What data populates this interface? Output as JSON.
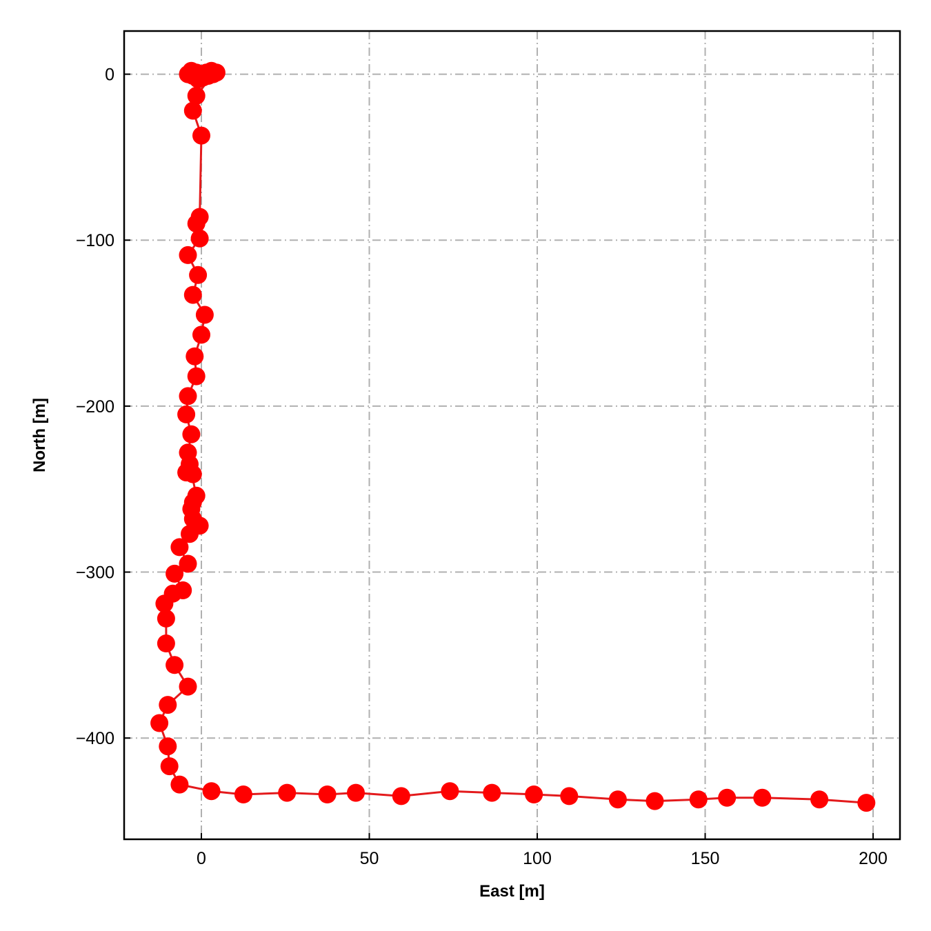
{
  "chart_data": {
    "type": "line",
    "title": "",
    "xlabel": "East [m]",
    "ylabel": "North [m]",
    "xlim": [
      -23,
      208
    ],
    "ylim": [
      -461,
      26
    ],
    "grid": true,
    "xticks": [
      0,
      50,
      100,
      150,
      200
    ],
    "yticks": [
      0,
      -100,
      -200,
      -300,
      -400
    ],
    "xtick_labels": [
      "0",
      "50",
      "100",
      "150",
      "200"
    ],
    "ytick_labels": [
      "0",
      "−100",
      "−200",
      "−300",
      "−400"
    ],
    "series": [
      {
        "marker": "circle",
        "x": [
          4.5,
          3.0,
          1.5,
          0.5,
          -1.5,
          -3.0,
          -4.0,
          -2.5,
          -1.0,
          0.5,
          2.0,
          3.5,
          -1.5,
          -2.5,
          0,
          -0.5,
          -1.5,
          -0.5,
          -4.0,
          -1.0,
          -2.5,
          1.0,
          0,
          -2.0,
          -1.5,
          -4.0,
          -4.5,
          -3.0,
          -4.0,
          -2.5,
          -4.5,
          -3.5,
          -1.5,
          -2.5,
          -3.0,
          -2.5,
          -0.5,
          -3.5,
          -6.5,
          -4.0,
          -8.0,
          -5.5,
          -8.5,
          -11.0,
          -10.5,
          -10.5,
          -8.0,
          -4.0,
          -10.0,
          -12.5,
          -10.0,
          -9.5,
          -6.5,
          3.0,
          12.5,
          25.5,
          37.5,
          46.0,
          59.5,
          74.0,
          86.5,
          99.0,
          109.5,
          124.0,
          135.0,
          148.0,
          156.5,
          167.0,
          184.0,
          198.0
        ],
        "y": [
          1,
          2,
          1,
          0,
          1,
          2,
          0,
          -1,
          -3,
          -2,
          -1,
          0,
          -13,
          -22,
          -37,
          -86,
          -90,
          -99,
          -109,
          -121,
          -133,
          -145,
          -157,
          -170,
          -182,
          -194,
          -205,
          -217,
          -228,
          -241,
          -240,
          -235,
          -254,
          -258,
          -262,
          -268,
          -272,
          -277,
          -285,
          -295,
          -301,
          -311,
          -313,
          -319,
          -328,
          -343,
          -356,
          -369,
          -380,
          -391,
          -405,
          -417,
          -428,
          -432,
          -434,
          -433,
          -434,
          -433,
          -435,
          -432,
          -433,
          -434,
          -435,
          -437,
          -438,
          -437,
          -436,
          -436,
          -437,
          -439
        ]
      }
    ],
    "colors": {
      "line": "#e31a1c",
      "marker": "#ff0000",
      "grid": "#b0b0b0",
      "axes": "#000000"
    }
  }
}
